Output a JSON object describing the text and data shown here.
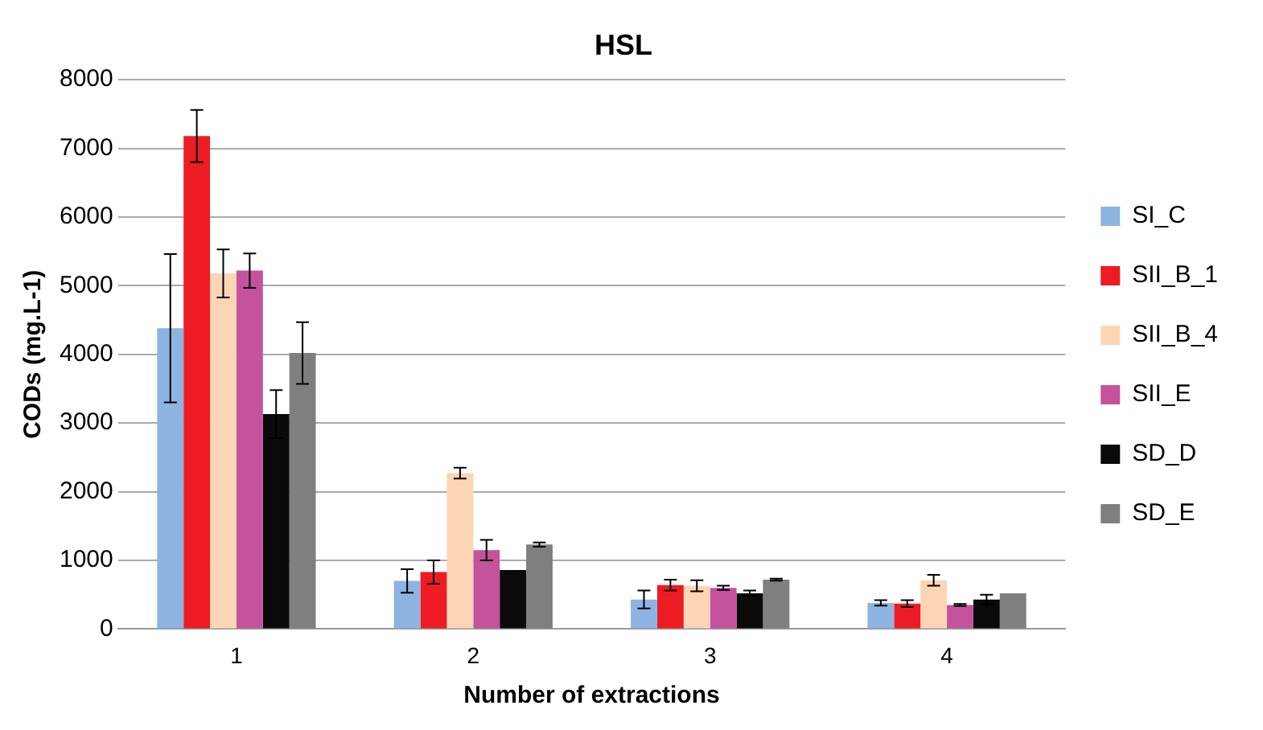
{
  "chart_data": {
    "type": "bar",
    "title": "HSL",
    "xlabel": "Number of extractions",
    "ylabel": "CODs (mg.L-1)",
    "categories": [
      "1",
      "2",
      "3",
      "4"
    ],
    "series": [
      {
        "name": "SI_C",
        "color": "#8db3e2",
        "values": [
          4380,
          700,
          430,
          380
        ],
        "errors": [
          1080,
          170,
          130,
          40
        ]
      },
      {
        "name": "SII_B_1",
        "color": "#ed1c24",
        "values": [
          7180,
          830,
          640,
          370
        ],
        "errors": [
          380,
          170,
          80,
          50
        ]
      },
      {
        "name": "SII_B_4",
        "color": "#fcd5b5",
        "values": [
          5180,
          2270,
          630,
          710
        ],
        "errors": [
          350,
          80,
          80,
          80
        ]
      },
      {
        "name": "SII_E",
        "color": "#c4529c",
        "values": [
          5220,
          1150,
          600,
          350
        ],
        "errors": [
          250,
          150,
          30,
          15
        ]
      },
      {
        "name": "SD_D",
        "color": "#0a0a0a",
        "values": [
          3130,
          860,
          520,
          430
        ],
        "errors": [
          350,
          null,
          40,
          70
        ]
      },
      {
        "name": "SD_E",
        "color": "#7f7f7f",
        "values": [
          4020,
          1230,
          720,
          520
        ],
        "errors": [
          450,
          30,
          15,
          null
        ]
      }
    ],
    "ylim": [
      0,
      8000
    ],
    "yticks": [
      0,
      1000,
      2000,
      3000,
      4000,
      5000,
      6000,
      7000,
      8000
    ],
    "grid": "y",
    "legend": "right"
  }
}
